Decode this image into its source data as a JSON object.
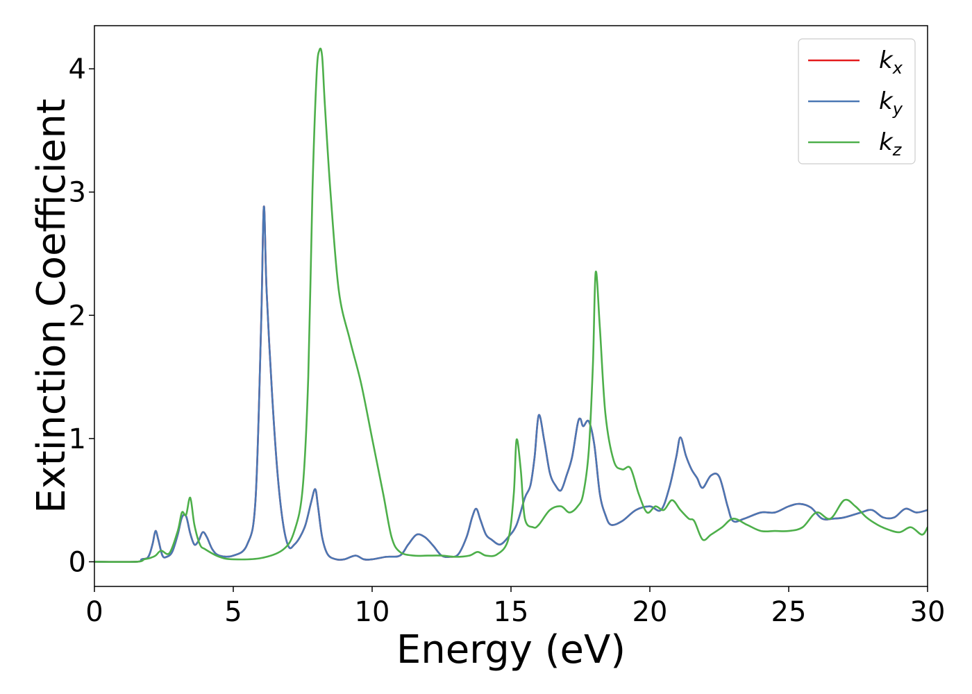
{
  "chart_data": {
    "type": "line",
    "title": "",
    "xlabel": "Energy (eV)",
    "ylabel": "Extinction Coefficient",
    "xlim": [
      0,
      30
    ],
    "ylim": [
      -0.2,
      4.35
    ],
    "xticks": [
      0,
      5,
      10,
      15,
      20,
      25,
      30
    ],
    "yticks": [
      0,
      1,
      2,
      3,
      4
    ],
    "grid": false,
    "legend_position": "top-right",
    "series": [
      {
        "name": "k_x",
        "label_base": "k",
        "label_sub": "x",
        "color": "#e41a1c",
        "x": [
          0,
          1.5,
          1.7,
          1.9,
          2.0,
          2.1,
          2.2,
          2.3,
          2.45,
          2.6,
          2.8,
          3.0,
          3.15,
          3.3,
          3.45,
          3.6,
          3.75,
          3.9,
          4.05,
          4.25,
          4.5,
          5.0,
          5.5,
          5.8,
          6.0,
          6.1,
          6.2,
          6.4,
          6.6,
          6.8,
          7.0,
          7.2,
          7.4,
          7.6,
          7.8,
          7.95,
          8.05,
          8.2,
          8.4,
          8.7,
          9.0,
          9.4,
          9.7,
          10.0,
          10.5,
          11.0,
          11.3,
          11.6,
          11.9,
          12.2,
          12.5,
          12.8,
          13.1,
          13.4,
          13.6,
          13.75,
          13.9,
          14.1,
          14.3,
          14.6,
          14.9,
          15.2,
          15.5,
          15.7,
          15.85,
          16.0,
          16.2,
          16.4,
          16.6,
          16.8,
          17.0,
          17.2,
          17.4,
          17.5,
          17.6,
          17.8,
          18.0,
          18.2,
          18.4,
          18.6,
          19.0,
          19.5,
          20.0,
          20.4,
          20.7,
          20.95,
          21.1,
          21.3,
          21.5,
          21.7,
          21.9,
          22.2,
          22.5,
          22.8,
          23.0,
          23.4,
          24.0,
          24.5,
          25.0,
          25.4,
          25.8,
          26.2,
          26.6,
          27.0,
          27.6,
          28.0,
          28.4,
          28.8,
          29.2,
          29.6,
          30.0
        ],
        "y": [
          0,
          0.0,
          0.02,
          0.03,
          0.07,
          0.15,
          0.25,
          0.18,
          0.05,
          0.04,
          0.08,
          0.22,
          0.36,
          0.37,
          0.23,
          0.14,
          0.17,
          0.24,
          0.2,
          0.1,
          0.05,
          0.05,
          0.14,
          0.5,
          1.9,
          2.88,
          2.2,
          1.35,
          0.7,
          0.3,
          0.12,
          0.14,
          0.2,
          0.3,
          0.48,
          0.59,
          0.45,
          0.2,
          0.06,
          0.02,
          0.02,
          0.05,
          0.02,
          0.02,
          0.04,
          0.05,
          0.14,
          0.22,
          0.2,
          0.13,
          0.05,
          0.04,
          0.06,
          0.2,
          0.36,
          0.43,
          0.34,
          0.22,
          0.18,
          0.14,
          0.2,
          0.3,
          0.52,
          0.62,
          0.85,
          1.19,
          0.98,
          0.72,
          0.62,
          0.58,
          0.7,
          0.85,
          1.12,
          1.16,
          1.1,
          1.14,
          0.95,
          0.55,
          0.38,
          0.3,
          0.33,
          0.42,
          0.45,
          0.42,
          0.6,
          0.85,
          1.01,
          0.86,
          0.75,
          0.68,
          0.6,
          0.7,
          0.69,
          0.45,
          0.33,
          0.35,
          0.4,
          0.4,
          0.45,
          0.47,
          0.44,
          0.35,
          0.35,
          0.36,
          0.4,
          0.42,
          0.36,
          0.36,
          0.43,
          0.4,
          0.42
        ]
      },
      {
        "name": "k_y",
        "label_base": "k",
        "label_sub": "y",
        "color": "#4a77b4",
        "x": [
          0,
          1.5,
          1.7,
          1.9,
          2.0,
          2.1,
          2.2,
          2.3,
          2.45,
          2.6,
          2.8,
          3.0,
          3.15,
          3.3,
          3.45,
          3.6,
          3.75,
          3.9,
          4.05,
          4.25,
          4.5,
          5.0,
          5.5,
          5.8,
          6.0,
          6.1,
          6.2,
          6.4,
          6.6,
          6.8,
          7.0,
          7.2,
          7.4,
          7.6,
          7.8,
          7.95,
          8.05,
          8.2,
          8.4,
          8.7,
          9.0,
          9.4,
          9.7,
          10.0,
          10.5,
          11.0,
          11.3,
          11.6,
          11.9,
          12.2,
          12.5,
          12.8,
          13.1,
          13.4,
          13.6,
          13.75,
          13.9,
          14.1,
          14.3,
          14.6,
          14.9,
          15.2,
          15.5,
          15.7,
          15.85,
          16.0,
          16.2,
          16.4,
          16.6,
          16.8,
          17.0,
          17.2,
          17.4,
          17.5,
          17.6,
          17.8,
          18.0,
          18.2,
          18.4,
          18.6,
          19.0,
          19.5,
          20.0,
          20.4,
          20.7,
          20.95,
          21.1,
          21.3,
          21.5,
          21.7,
          21.9,
          22.2,
          22.5,
          22.8,
          23.0,
          23.4,
          24.0,
          24.5,
          25.0,
          25.4,
          25.8,
          26.2,
          26.6,
          27.0,
          27.6,
          28.0,
          28.4,
          28.8,
          29.2,
          29.6,
          30.0
        ],
        "y": [
          0,
          0.0,
          0.02,
          0.03,
          0.07,
          0.15,
          0.25,
          0.18,
          0.05,
          0.04,
          0.08,
          0.22,
          0.36,
          0.37,
          0.23,
          0.14,
          0.17,
          0.24,
          0.2,
          0.1,
          0.05,
          0.05,
          0.14,
          0.5,
          1.9,
          2.88,
          2.2,
          1.35,
          0.7,
          0.3,
          0.12,
          0.14,
          0.2,
          0.3,
          0.48,
          0.59,
          0.45,
          0.2,
          0.06,
          0.02,
          0.02,
          0.05,
          0.02,
          0.02,
          0.04,
          0.05,
          0.14,
          0.22,
          0.2,
          0.13,
          0.05,
          0.04,
          0.06,
          0.2,
          0.36,
          0.43,
          0.34,
          0.22,
          0.18,
          0.14,
          0.2,
          0.3,
          0.52,
          0.62,
          0.85,
          1.19,
          0.98,
          0.72,
          0.62,
          0.58,
          0.7,
          0.85,
          1.12,
          1.16,
          1.1,
          1.14,
          0.95,
          0.55,
          0.38,
          0.3,
          0.33,
          0.42,
          0.45,
          0.42,
          0.6,
          0.85,
          1.01,
          0.86,
          0.75,
          0.68,
          0.6,
          0.7,
          0.69,
          0.45,
          0.33,
          0.35,
          0.4,
          0.4,
          0.45,
          0.47,
          0.44,
          0.35,
          0.35,
          0.36,
          0.4,
          0.42,
          0.36,
          0.36,
          0.43,
          0.4,
          0.42
        ]
      },
      {
        "name": "k_z",
        "label_base": "k",
        "label_sub": "z",
        "color": "#4daf4a",
        "x": [
          0,
          1.5,
          1.8,
          2.0,
          2.2,
          2.4,
          2.7,
          3.0,
          3.15,
          3.3,
          3.45,
          3.6,
          3.8,
          4.0,
          4.5,
          5.0,
          6.0,
          6.8,
          7.2,
          7.5,
          7.7,
          7.85,
          8.0,
          8.1,
          8.2,
          8.3,
          8.5,
          8.8,
          9.2,
          9.6,
          10.0,
          10.4,
          10.7,
          11.0,
          11.5,
          12.0,
          12.5,
          13.0,
          13.5,
          13.8,
          14.1,
          14.5,
          14.9,
          15.1,
          15.2,
          15.35,
          15.5,
          15.8,
          16.0,
          16.4,
          16.8,
          17.1,
          17.4,
          17.6,
          17.8,
          17.95,
          18.05,
          18.2,
          18.4,
          18.7,
          19.0,
          19.3,
          19.6,
          19.9,
          20.2,
          20.5,
          20.8,
          21.1,
          21.4,
          21.6,
          21.9,
          22.2,
          22.6,
          23.0,
          23.5,
          24.0,
          24.5,
          25.0,
          25.5,
          26.0,
          26.5,
          27.0,
          27.4,
          27.8,
          28.2,
          28.6,
          29.0,
          29.4,
          29.8,
          30.0
        ],
        "y": [
          0,
          0.0,
          0.02,
          0.03,
          0.05,
          0.09,
          0.07,
          0.25,
          0.4,
          0.38,
          0.52,
          0.3,
          0.14,
          0.1,
          0.04,
          0.02,
          0.03,
          0.1,
          0.25,
          0.6,
          1.5,
          3.0,
          3.95,
          4.15,
          4.1,
          3.7,
          3.0,
          2.2,
          1.8,
          1.45,
          1.0,
          0.55,
          0.2,
          0.08,
          0.05,
          0.05,
          0.05,
          0.04,
          0.05,
          0.08,
          0.05,
          0.06,
          0.18,
          0.55,
          0.99,
          0.75,
          0.35,
          0.28,
          0.3,
          0.42,
          0.45,
          0.4,
          0.45,
          0.55,
          0.9,
          1.6,
          2.35,
          1.9,
          1.2,
          0.82,
          0.75,
          0.76,
          0.55,
          0.4,
          0.45,
          0.42,
          0.5,
          0.42,
          0.35,
          0.33,
          0.18,
          0.22,
          0.28,
          0.35,
          0.3,
          0.25,
          0.25,
          0.25,
          0.28,
          0.4,
          0.35,
          0.5,
          0.45,
          0.36,
          0.3,
          0.26,
          0.24,
          0.28,
          0.22,
          0.28
        ]
      }
    ]
  }
}
